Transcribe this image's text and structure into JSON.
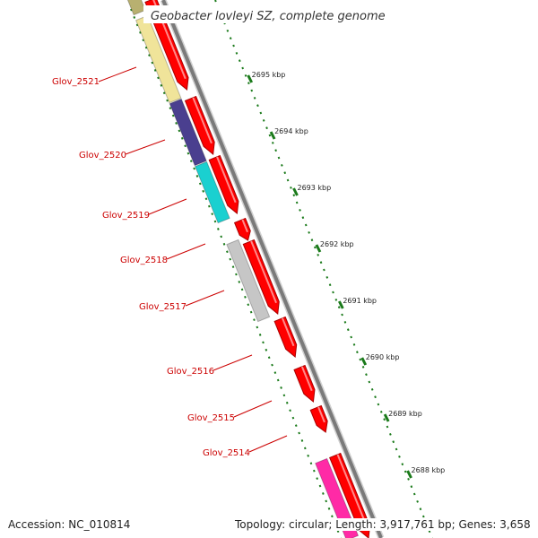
{
  "map": {
    "title": "Geobacter lovleyi SZ, complete genome",
    "genes": [
      {
        "label": "Glov_2521",
        "color": "#f0e49a"
      },
      {
        "label": "Glov_2520",
        "color": "#4a3f8f"
      },
      {
        "label": "Glov_2519",
        "color": "#1ad0d0"
      },
      {
        "label": "Glov_2518",
        "color": "#ffffff"
      },
      {
        "label": "Glov_2517",
        "color": "#c6c6c6"
      },
      {
        "label": "Glov_2516",
        "color": "#ffffff"
      },
      {
        "label": "Glov_2515",
        "color": "#ffffff"
      },
      {
        "label": "Glov_2514",
        "color": "#ffffff"
      },
      {
        "label": "",
        "color": "#ff2aa6"
      }
    ],
    "kbp_ticks": [
      "2695 kbp",
      "2694 kbp",
      "2693 kbp",
      "2692 kbp",
      "2691 kbp",
      "2690 kbp",
      "2689 kbp",
      "2688 kbp"
    ],
    "colors": {
      "cds_red": "#ff0000",
      "backbone": "#7a7a7a",
      "tick_green": "#1a7a1a",
      "label_red": "#cc0000"
    }
  },
  "footer": {
    "accession": "Accession: NC_010814",
    "stats": "Topology: circular; Length: 3,917,761 bp; Genes: 3,658"
  }
}
